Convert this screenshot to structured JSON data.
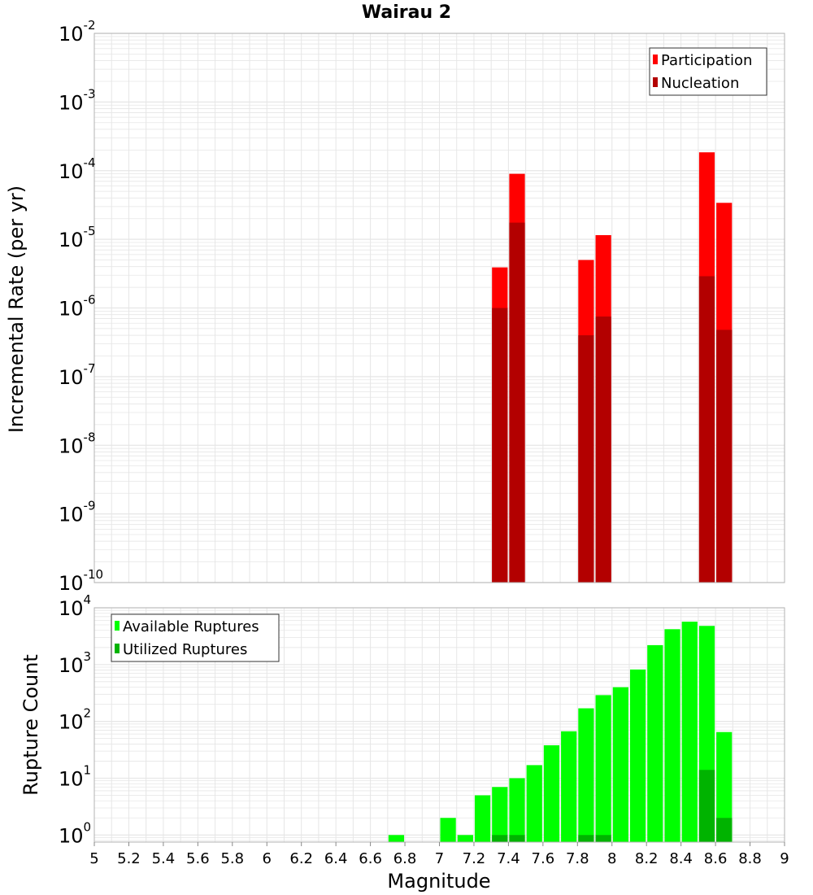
{
  "title": "Wairau 2",
  "colors": {
    "participation": "#ff0000",
    "nucleation": "#b30000",
    "available": "#00ff00",
    "utilized": "#00b300",
    "grid": "#e6e6e6",
    "frame": "#b3b3b3"
  },
  "chart_data": [
    {
      "type": "bar",
      "panel": "top",
      "ylabel": "Incremental Rate (per yr)",
      "xlabel": "",
      "xlim": [
        5,
        9
      ],
      "ylim": [
        1e-10,
        0.01
      ],
      "yscale": "log",
      "ytick_exponents": [
        -10,
        -9,
        -8,
        -7,
        -6,
        -5,
        -4,
        -3,
        -2
      ],
      "grid": true,
      "legend_position": "top-right",
      "bar_width": 0.1,
      "series": [
        {
          "name": "Participation",
          "color": "#ff0000",
          "points": [
            {
              "x": 7.35,
              "y": 3.9e-06
            },
            {
              "x": 7.45,
              "y": 9e-05
            },
            {
              "x": 7.85,
              "y": 5e-06
            },
            {
              "x": 7.95,
              "y": 1.15e-05
            },
            {
              "x": 8.55,
              "y": 0.000185
            },
            {
              "x": 8.65,
              "y": 3.4e-05
            }
          ]
        },
        {
          "name": "Nucleation",
          "color": "#b30000",
          "points": [
            {
              "x": 7.35,
              "y": 1e-06
            },
            {
              "x": 7.45,
              "y": 1.75e-05
            },
            {
              "x": 7.85,
              "y": 4e-07
            },
            {
              "x": 7.95,
              "y": 7.5e-07
            },
            {
              "x": 8.55,
              "y": 2.9e-06
            },
            {
              "x": 8.65,
              "y": 4.8e-07
            }
          ]
        }
      ]
    },
    {
      "type": "bar",
      "panel": "bottom",
      "xlabel": "Magnitude",
      "ylabel": "Rupture Count",
      "xlim": [
        5,
        9
      ],
      "ylim": [
        0.75,
        10000
      ],
      "yscale": "log",
      "ytick_exponents": [
        0,
        1,
        2,
        3,
        4
      ],
      "xticks": [
        "5",
        "5.2",
        "5.4",
        "5.6",
        "5.8",
        "6",
        "6.2",
        "6.4",
        "6.6",
        "6.8",
        "7",
        "7.2",
        "7.4",
        "7.6",
        "7.8",
        "8",
        "8.2",
        "8.4",
        "8.6",
        "8.8",
        "9"
      ],
      "grid": true,
      "legend_position": "top-left",
      "bar_width": 0.1,
      "series": [
        {
          "name": "Available Ruptures",
          "color": "#00ff00",
          "points": [
            {
              "x": 6.75,
              "y": 1
            },
            {
              "x": 7.05,
              "y": 2
            },
            {
              "x": 7.15,
              "y": 1
            },
            {
              "x": 7.25,
              "y": 5
            },
            {
              "x": 7.35,
              "y": 7
            },
            {
              "x": 7.45,
              "y": 10
            },
            {
              "x": 7.55,
              "y": 17
            },
            {
              "x": 7.65,
              "y": 38
            },
            {
              "x": 7.75,
              "y": 67
            },
            {
              "x": 7.85,
              "y": 170
            },
            {
              "x": 7.95,
              "y": 290
            },
            {
              "x": 8.05,
              "y": 400
            },
            {
              "x": 8.15,
              "y": 820
            },
            {
              "x": 8.25,
              "y": 2200
            },
            {
              "x": 8.35,
              "y": 4200
            },
            {
              "x": 8.45,
              "y": 5700
            },
            {
              "x": 8.55,
              "y": 4800
            },
            {
              "x": 8.65,
              "y": 65
            }
          ]
        },
        {
          "name": "Utilized Ruptures",
          "color": "#00b300",
          "points": [
            {
              "x": 7.35,
              "y": 1
            },
            {
              "x": 7.45,
              "y": 1
            },
            {
              "x": 7.85,
              "y": 1
            },
            {
              "x": 7.95,
              "y": 1
            },
            {
              "x": 8.55,
              "y": 14
            },
            {
              "x": 8.65,
              "y": 2
            }
          ]
        }
      ]
    }
  ]
}
